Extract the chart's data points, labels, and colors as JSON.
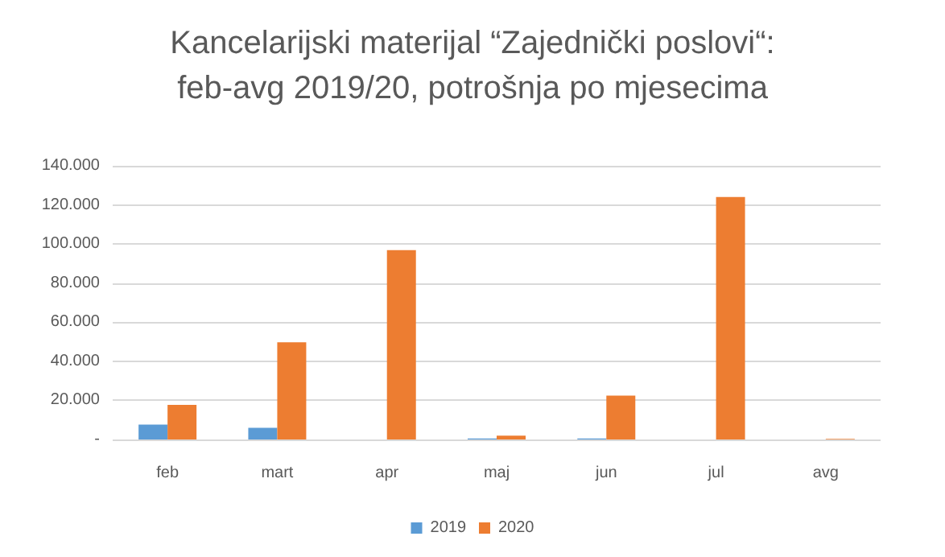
{
  "chart_data": {
    "type": "bar",
    "title": "Kancelarijski materijal “Zajednički poslovi“:\nfeb-avg 2019/20, potrošnja po mjesecima",
    "categories": [
      "feb",
      "mart",
      "apr",
      "maj",
      "jun",
      "jul",
      "avg"
    ],
    "series": [
      {
        "name": "2019",
        "color": "#5b9bd5",
        "values": [
          7600,
          6000,
          0,
          500,
          500,
          0,
          0
        ]
      },
      {
        "name": "2020",
        "color": "#ed7d31",
        "values": [
          17700,
          49700,
          96900,
          2000,
          22400,
          124000,
          300
        ]
      }
    ],
    "ylim": [
      0,
      140000
    ],
    "yticks": [
      {
        "value": 0,
        "label": "-"
      },
      {
        "value": 20000,
        "label": "20.000"
      },
      {
        "value": 40000,
        "label": "40.000"
      },
      {
        "value": 60000,
        "label": "60.000"
      },
      {
        "value": 80000,
        "label": "80.000"
      },
      {
        "value": 100000,
        "label": "100.000"
      },
      {
        "value": 120000,
        "label": "120.000"
      },
      {
        "value": 140000,
        "label": "140.000"
      }
    ],
    "grid": "y",
    "legend": "bottom"
  }
}
